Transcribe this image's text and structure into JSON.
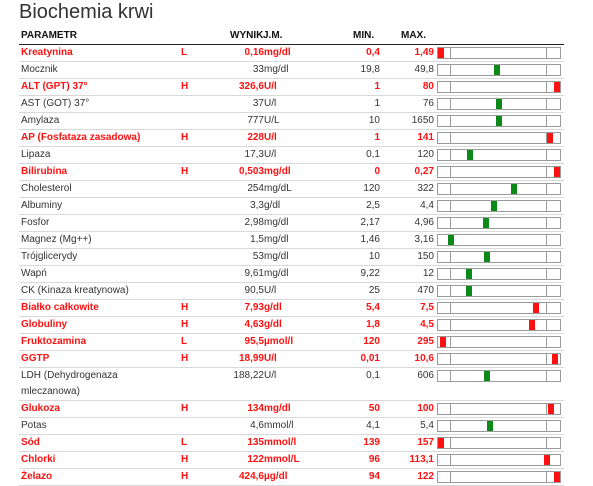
{
  "title": "Biochemia krwi",
  "headers": {
    "param": "PARAMETR",
    "value": "WYNIK",
    "unit": "J.M.",
    "min": "MIN.",
    "max": "MAX."
  },
  "colors": {
    "normal_marker": "#0b8a1a",
    "abnormal_marker": "#ff1111",
    "abnormal_text": "#ff1111"
  },
  "rows": [
    {
      "param": "Kreatynina",
      "flag": "L",
      "value": "0,16",
      "unit": "mg/dl",
      "min": "0,4",
      "max": "1,49",
      "abnormal": true,
      "level": 0.02
    },
    {
      "param": "Mocznik",
      "flag": "",
      "value": "33",
      "unit": "mg/dl",
      "min": "19,8",
      "max": "49,8",
      "abnormal": false,
      "level": 0.48
    },
    {
      "param": "ALT (GPT) 37°",
      "flag": "H",
      "value": "326,6",
      "unit": "U/l",
      "min": "1",
      "max": "80",
      "abnormal": true,
      "level": 0.985
    },
    {
      "param": "AST (GOT) 37°",
      "flag": "",
      "value": "37",
      "unit": "U/l",
      "min": "1",
      "max": "76",
      "abnormal": false,
      "level": 0.5
    },
    {
      "param": "Amylaza",
      "flag": "",
      "value": "777",
      "unit": "U/L",
      "min": "10",
      "max": "1650",
      "abnormal": false,
      "level": 0.5
    },
    {
      "param": "AP (Fosfataza zasadowa)",
      "flag": "H",
      "value": "228",
      "unit": "U/l",
      "min": "1",
      "max": "141",
      "abnormal": true,
      "level": 0.92
    },
    {
      "param": "Lipaza",
      "flag": "",
      "value": "17,3",
      "unit": "U/l",
      "min": "0,1",
      "max": "120",
      "abnormal": false,
      "level": 0.26
    },
    {
      "param": "Bilirubina",
      "flag": "H",
      "value": "0,503",
      "unit": "mg/dl",
      "min": "0",
      "max": "0,27",
      "abnormal": true,
      "level": 0.985
    },
    {
      "param": "Cholesterol",
      "flag": "",
      "value": "254",
      "unit": "mg/dL",
      "min": "120",
      "max": "322",
      "abnormal": false,
      "level": 0.62
    },
    {
      "param": "Albuminy",
      "flag": "",
      "value": "3,3",
      "unit": "g/dl",
      "min": "2,5",
      "max": "4,4",
      "abnormal": false,
      "level": 0.46
    },
    {
      "param": "Fosfor",
      "flag": "",
      "value": "2,98",
      "unit": "mg/dl",
      "min": "2,17",
      "max": "4,96",
      "abnormal": false,
      "level": 0.39
    },
    {
      "param": "Magnez (Mg++)",
      "flag": "",
      "value": "1,5",
      "unit": "mg/dl",
      "min": "1,46",
      "max": "3,16",
      "abnormal": false,
      "level": 0.11
    },
    {
      "param": "Trójglicerydy",
      "flag": "",
      "value": "53",
      "unit": "mg/dl",
      "min": "10",
      "max": "150",
      "abnormal": false,
      "level": 0.4
    },
    {
      "param": "Wapń",
      "flag": "",
      "value": "9,61",
      "unit": "mg/dl",
      "min": "9,22",
      "max": "12",
      "abnormal": false,
      "level": 0.25
    },
    {
      "param": "CK (Kinaza kreatynowa)",
      "flag": "",
      "value": "90,5",
      "unit": "U/l",
      "min": "25",
      "max": "470",
      "abnormal": false,
      "level": 0.25
    },
    {
      "param": "Białko całkowite",
      "flag": "H",
      "value": "7,93",
      "unit": "g/dl",
      "min": "5,4",
      "max": "7,5",
      "abnormal": true,
      "level": 0.8
    },
    {
      "param": "Globuliny",
      "flag": "H",
      "value": "4,63",
      "unit": "g/dl",
      "min": "1,8",
      "max": "4,5",
      "abnormal": true,
      "level": 0.77
    },
    {
      "param": "Fruktozamina",
      "flag": "L",
      "value": "95,5",
      "unit": "µmol/l",
      "min": "120",
      "max": "295",
      "abnormal": true,
      "level": 0.045
    },
    {
      "param": "GGTP",
      "flag": "H",
      "value": "18,99",
      "unit": "U/l",
      "min": "0,01",
      "max": "10,6",
      "abnormal": true,
      "level": 0.96
    },
    {
      "param": "LDH (Dehydrogenaza mleczanowa)",
      "flag": "",
      "value": "188,22",
      "unit": "U/l",
      "min": "0,1",
      "max": "606",
      "abnormal": false,
      "level": 0.4,
      "tall": true
    },
    {
      "param": "Glukoza",
      "flag": "H",
      "value": "134",
      "unit": "mg/dl",
      "min": "50",
      "max": "100",
      "abnormal": true,
      "level": 0.93
    },
    {
      "param": "Potas",
      "flag": "",
      "value": "4,6",
      "unit": "mmol/l",
      "min": "4,1",
      "max": "5,4",
      "abnormal": false,
      "level": 0.43
    },
    {
      "param": "Sód",
      "flag": "L",
      "value": "135",
      "unit": "mmol/l",
      "min": "139",
      "max": "157",
      "abnormal": true,
      "level": 0.02
    },
    {
      "param": "Chlorki",
      "flag": "H",
      "value": "122",
      "unit": "mmol/L",
      "min": "96",
      "max": "113,1",
      "abnormal": true,
      "level": 0.89
    },
    {
      "param": "Żelazo",
      "flag": "H",
      "value": "424,6",
      "unit": "µg/dl",
      "min": "94",
      "max": "122",
      "abnormal": true,
      "level": 0.985
    }
  ]
}
